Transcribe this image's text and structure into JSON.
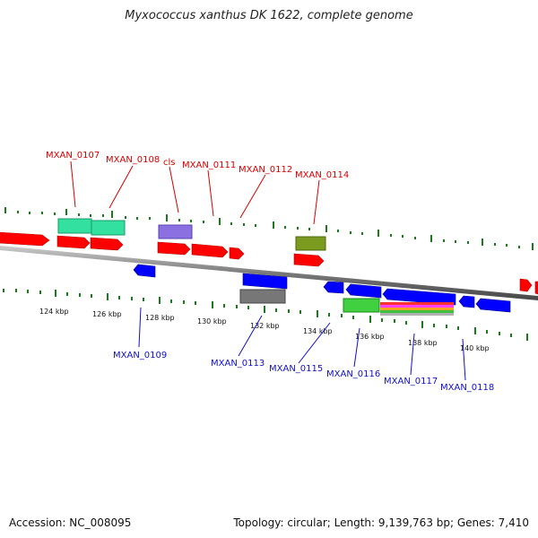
{
  "title": "Myxococcus xanthus DK 1622, complete genome",
  "footer": {
    "accession": "Accession: NC_008095",
    "topology": "Topology: circular; Length: 9,139,763 bp; Genes: 7,410"
  },
  "scale_labels": [
    "124 kbp",
    "126 kbp",
    "128 kbp",
    "130 kbp",
    "132 kbp",
    "134 kbp",
    "136 kbp",
    "138 kbp",
    "140 kbp"
  ],
  "gene_labels_top": [
    "MXAN_0107",
    "MXAN_0108",
    "cls",
    "MXAN_0111",
    "MXAN_0112",
    "MXAN_0114"
  ],
  "gene_labels_bottom": [
    "MXAN_0109",
    "MXAN_0113",
    "MXAN_0115",
    "MXAN_0116",
    "MXAN_0117",
    "MXAN_0118"
  ],
  "colors": {
    "forward_cds": "#ff0000",
    "reverse_cds": "#0000ff",
    "backbone": "#888888",
    "tick_green": "#1a7a1a",
    "label_red": "#d40000",
    "label_blue": "#1010c8"
  }
}
